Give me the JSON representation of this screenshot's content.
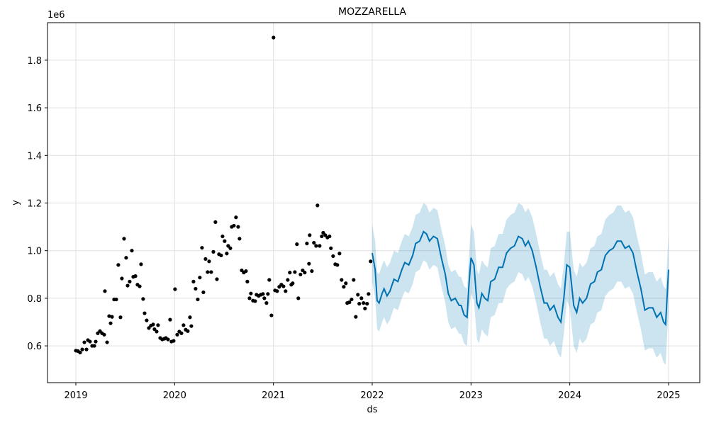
{
  "chart_data": {
    "type": "forecast",
    "title": "MOZZARELLA",
    "x_label": "ds",
    "y_label": "y",
    "y_offset_text": "1e6",
    "xlim": [
      2018.713,
      2025.316
    ],
    "xticks": [
      2019,
      2020,
      2021,
      2022,
      2023,
      2024,
      2025
    ],
    "ylim": [
      0.4455,
      1.9575
    ],
    "yticks": [
      0.6,
      0.8,
      1.0,
      1.2,
      1.4,
      1.6,
      1.8
    ],
    "grid": true,
    "observed": {
      "color": "#000000",
      "x": [
        2019.0,
        2019.022,
        2019.043,
        2019.065,
        2019.086,
        2019.108,
        2019.122,
        2019.143,
        2019.165,
        2019.187,
        2019.201,
        2019.222,
        2019.244,
        2019.265,
        2019.287,
        2019.294,
        2019.316,
        2019.337,
        2019.352,
        2019.366,
        2019.387,
        2019.409,
        2019.43,
        2019.452,
        2019.466,
        2019.488,
        2019.509,
        2019.524,
        2019.545,
        2019.567,
        2019.581,
        2019.603,
        2019.624,
        2019.646,
        2019.66,
        2019.681,
        2019.696,
        2019.717,
        2019.739,
        2019.76,
        2019.782,
        2019.796,
        2019.818,
        2019.832,
        2019.854,
        2019.875,
        2019.897,
        2019.911,
        2019.933,
        2019.954,
        2019.968,
        2019.99,
        2020.004,
        2020.026,
        2020.047,
        2020.069,
        2020.09,
        2020.112,
        2020.133,
        2020.155,
        2020.169,
        2020.191,
        2020.212,
        2020.234,
        2020.255,
        2020.277,
        2020.291,
        2020.313,
        2020.334,
        2020.349,
        2020.37,
        2020.392,
        2020.413,
        2020.428,
        2020.449,
        2020.471,
        2020.485,
        2020.506,
        2020.528,
        2020.542,
        2020.564,
        2020.578,
        2020.6,
        2020.621,
        2020.643,
        2020.657,
        2020.679,
        2020.7,
        2020.722,
        2020.736,
        2020.758,
        2020.772,
        2020.793,
        2020.815,
        2020.829,
        2020.851,
        2020.872,
        2020.894,
        2020.908,
        2020.93,
        2020.944,
        2020.958,
        2020.98,
        2021.001,
        2021.016,
        2021.037,
        2021.059,
        2021.08,
        2021.102,
        2021.123,
        2021.145,
        2021.166,
        2021.181,
        2021.195,
        2021.217,
        2021.238,
        2021.252,
        2021.274,
        2021.296,
        2021.317,
        2021.339,
        2021.36,
        2021.367,
        2021.389,
        2021.41,
        2021.432,
        2021.446,
        2021.468,
        2021.489,
        2021.504,
        2021.525,
        2021.547,
        2021.568,
        2021.582,
        2021.604,
        2021.626,
        2021.647,
        2021.669,
        2021.69,
        2021.712,
        2021.733,
        2021.747,
        2021.769,
        2021.791,
        2021.812,
        2021.834,
        2021.855,
        2021.869,
        2021.891,
        2021.912,
        2021.927,
        2021.948,
        2021.963,
        2021.984
      ],
      "values": [
        0.58,
        0.578,
        0.572,
        0.585,
        0.615,
        0.585,
        0.624,
        0.618,
        0.6,
        0.6,
        0.618,
        0.653,
        0.662,
        0.653,
        0.647,
        0.83,
        0.615,
        0.725,
        0.695,
        0.722,
        0.795,
        0.795,
        0.94,
        0.72,
        0.883,
        1.05,
        0.97,
        0.853,
        0.87,
        1.0,
        0.89,
        0.893,
        0.857,
        0.85,
        0.943,
        0.797,
        0.737,
        0.707,
        0.675,
        0.685,
        0.69,
        0.67,
        0.66,
        0.687,
        0.633,
        0.627,
        0.63,
        0.633,
        0.627,
        0.71,
        0.618,
        0.621,
        0.838,
        0.647,
        0.66,
        0.653,
        0.687,
        0.668,
        0.662,
        0.72,
        0.683,
        0.87,
        0.84,
        0.795,
        0.887,
        1.012,
        0.825,
        0.965,
        0.91,
        0.955,
        0.91,
        0.995,
        1.12,
        0.88,
        0.985,
        0.98,
        1.06,
        1.04,
        0.988,
        1.02,
        1.01,
        1.1,
        1.105,
        1.14,
        1.1,
        1.05,
        0.917,
        0.908,
        0.914,
        0.87,
        0.8,
        0.82,
        0.79,
        0.788,
        0.815,
        0.81,
        0.815,
        0.818,
        0.8,
        0.78,
        0.818,
        0.877,
        0.728,
        1.895,
        0.833,
        0.83,
        0.848,
        0.857,
        0.85,
        0.83,
        0.877,
        0.908,
        0.857,
        0.863,
        0.91,
        1.027,
        0.8,
        0.9,
        0.917,
        0.908,
        1.03,
        0.945,
        1.065,
        0.914,
        1.033,
        1.02,
        1.19,
        1.02,
        1.06,
        1.075,
        1.065,
        1.055,
        1.06,
        1.01,
        0.977,
        0.943,
        0.94,
        0.988,
        0.877,
        0.848,
        0.863,
        0.78,
        0.783,
        0.795,
        0.877,
        0.722,
        0.815,
        0.777,
        0.8,
        0.78,
        0.757,
        0.777,
        0.818,
        0.955
      ]
    },
    "forecast": {
      "color": "#0072B2",
      "band_color": "#0072B2",
      "x": [
        2022.0,
        2022.03,
        2022.05,
        2022.07,
        2022.1,
        2022.12,
        2022.15,
        2022.18,
        2022.22,
        2022.26,
        2022.3,
        2022.33,
        2022.37,
        2022.41,
        2022.44,
        2022.48,
        2022.52,
        2022.55,
        2022.58,
        2022.62,
        2022.66,
        2022.7,
        2022.74,
        2022.77,
        2022.8,
        2022.84,
        2022.88,
        2022.9,
        2022.93,
        2022.96,
        2022.98,
        2023.0,
        2023.03,
        2023.06,
        2023.08,
        2023.11,
        2023.14,
        2023.17,
        2023.2,
        2023.24,
        2023.28,
        2023.32,
        2023.36,
        2023.4,
        2023.44,
        2023.48,
        2023.52,
        2023.55,
        2023.58,
        2023.62,
        2023.66,
        2023.7,
        2023.74,
        2023.77,
        2023.8,
        2023.84,
        2023.88,
        2023.91,
        2023.94,
        2023.97,
        2024.0,
        2024.04,
        2024.07,
        2024.1,
        2024.13,
        2024.17,
        2024.21,
        2024.25,
        2024.28,
        2024.32,
        2024.36,
        2024.4,
        2024.44,
        2024.48,
        2024.52,
        2024.56,
        2024.6,
        2024.64,
        2024.68,
        2024.72,
        2024.76,
        2024.8,
        2024.84,
        2024.88,
        2024.92,
        2024.95,
        2024.97,
        2025.0
      ],
      "values": [
        0.99,
        0.92,
        0.79,
        0.78,
        0.82,
        0.84,
        0.81,
        0.83,
        0.88,
        0.87,
        0.92,
        0.95,
        0.94,
        0.98,
        1.03,
        1.04,
        1.08,
        1.07,
        1.04,
        1.06,
        1.05,
        0.97,
        0.9,
        0.82,
        0.79,
        0.8,
        0.77,
        0.77,
        0.73,
        0.72,
        0.86,
        0.97,
        0.94,
        0.78,
        0.76,
        0.82,
        0.8,
        0.79,
        0.87,
        0.88,
        0.93,
        0.93,
        0.99,
        1.01,
        1.02,
        1.06,
        1.05,
        1.02,
        1.04,
        1.0,
        0.93,
        0.85,
        0.78,
        0.78,
        0.75,
        0.77,
        0.72,
        0.7,
        0.8,
        0.94,
        0.93,
        0.77,
        0.74,
        0.8,
        0.78,
        0.8,
        0.86,
        0.87,
        0.91,
        0.92,
        0.98,
        1.0,
        1.01,
        1.04,
        1.04,
        1.01,
        1.02,
        0.99,
        0.91,
        0.84,
        0.75,
        0.76,
        0.76,
        0.72,
        0.74,
        0.7,
        0.69,
        0.92
      ],
      "upper": [
        1.11,
        1.04,
        0.91,
        0.9,
        0.94,
        0.96,
        0.93,
        0.95,
        1.0,
        0.99,
        1.04,
        1.07,
        1.06,
        1.1,
        1.15,
        1.16,
        1.2,
        1.19,
        1.16,
        1.18,
        1.17,
        1.09,
        1.02,
        0.94,
        0.91,
        0.92,
        0.89,
        0.89,
        0.85,
        0.84,
        0.98,
        1.11,
        1.08,
        0.92,
        0.9,
        0.96,
        0.94,
        0.93,
        1.01,
        1.02,
        1.07,
        1.07,
        1.13,
        1.15,
        1.16,
        1.2,
        1.19,
        1.16,
        1.18,
        1.14,
        1.07,
        0.99,
        0.92,
        0.92,
        0.89,
        0.91,
        0.86,
        0.84,
        0.94,
        1.08,
        1.08,
        0.92,
        0.89,
        0.95,
        0.93,
        0.95,
        1.01,
        1.02,
        1.06,
        1.07,
        1.13,
        1.15,
        1.16,
        1.19,
        1.19,
        1.16,
        1.17,
        1.14,
        1.06,
        0.99,
        0.9,
        0.91,
        0.91,
        0.87,
        0.89,
        0.85,
        0.84,
        1.07
      ],
      "lower": [
        0.87,
        0.8,
        0.67,
        0.66,
        0.7,
        0.72,
        0.69,
        0.71,
        0.76,
        0.75,
        0.8,
        0.83,
        0.82,
        0.86,
        0.91,
        0.92,
        0.96,
        0.95,
        0.92,
        0.94,
        0.93,
        0.85,
        0.78,
        0.7,
        0.67,
        0.68,
        0.65,
        0.65,
        0.61,
        0.6,
        0.74,
        0.82,
        0.79,
        0.63,
        0.61,
        0.67,
        0.65,
        0.64,
        0.72,
        0.73,
        0.78,
        0.78,
        0.84,
        0.86,
        0.87,
        0.91,
        0.9,
        0.87,
        0.89,
        0.85,
        0.78,
        0.7,
        0.63,
        0.63,
        0.6,
        0.62,
        0.57,
        0.55,
        0.65,
        0.79,
        0.76,
        0.6,
        0.57,
        0.63,
        0.61,
        0.63,
        0.69,
        0.7,
        0.74,
        0.75,
        0.81,
        0.83,
        0.84,
        0.87,
        0.87,
        0.84,
        0.85,
        0.82,
        0.74,
        0.67,
        0.58,
        0.59,
        0.59,
        0.55,
        0.57,
        0.53,
        0.52,
        0.75
      ]
    }
  }
}
